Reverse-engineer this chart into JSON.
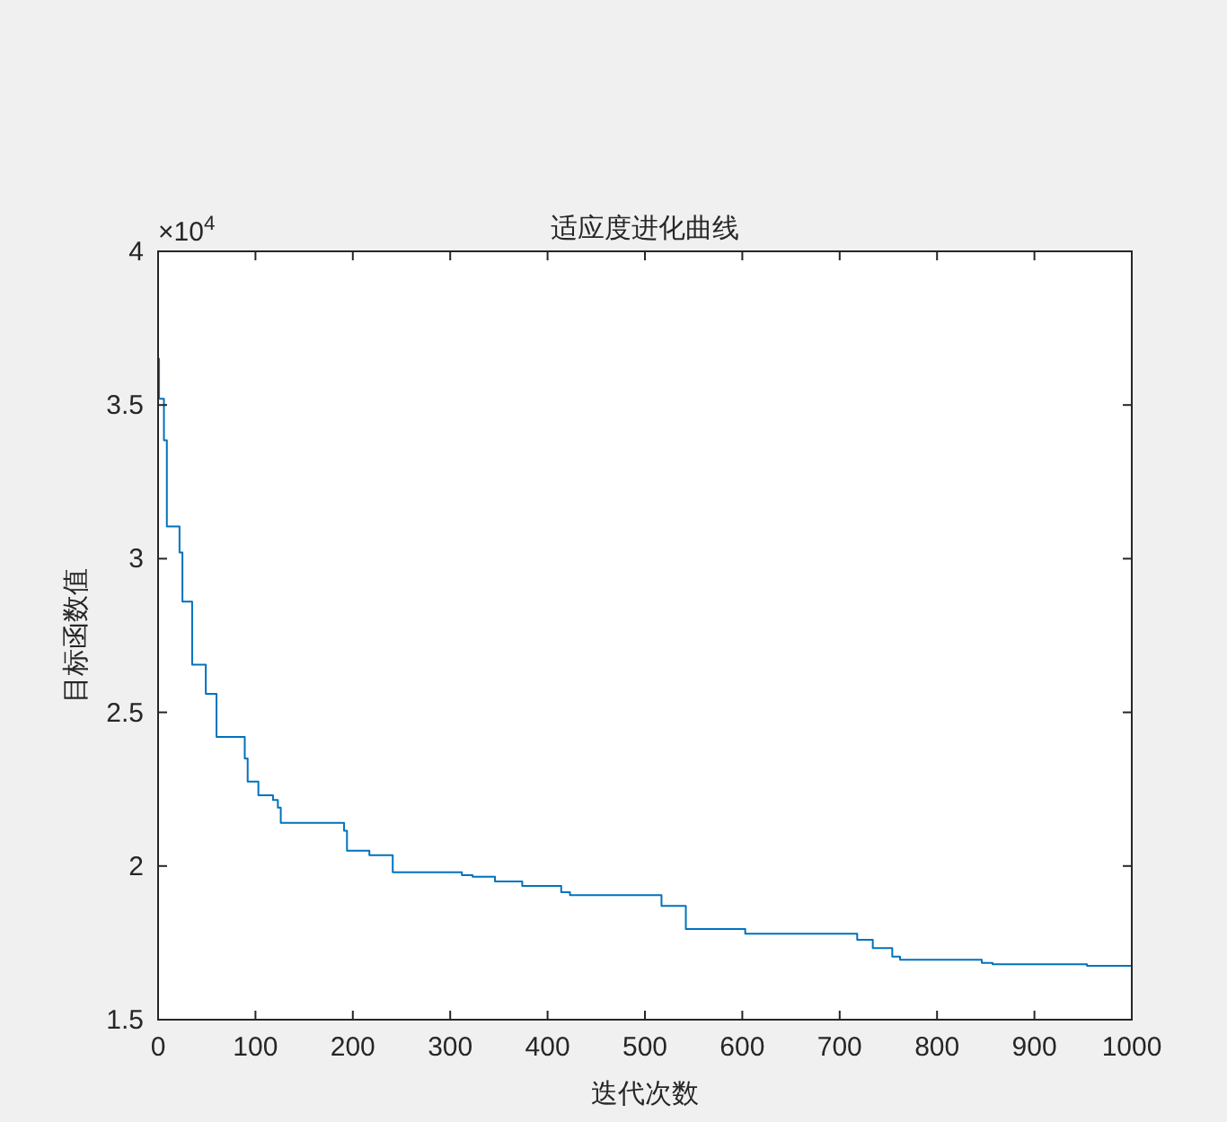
{
  "chart_data": {
    "type": "step",
    "title": "适应度进化曲线",
    "xlabel": "迭代次数",
    "ylabel": "目标函数值",
    "annotations": [
      "×10$^{4}$"
    ],
    "xlim": [
      0,
      1000
    ],
    "xticks": [
      0,
      100,
      200,
      300,
      400,
      500,
      600,
      700,
      800,
      900,
      1000
    ],
    "ylim": [
      1.5,
      4
    ],
    "yticks": [
      1.5,
      2,
      2.5,
      3,
      3.5,
      4
    ],
    "series": [
      {
        "color": "#0072bd",
        "x": [
          0,
          1,
          6,
          9,
          22,
          25,
          35,
          49,
          60,
          89,
          92,
          103,
          118,
          123,
          126,
          191,
          194,
          217,
          241,
          312,
          323,
          346,
          374,
          414,
          423,
          517,
          542,
          603,
          718,
          734,
          754,
          762,
          846,
          857,
          954,
          1000
        ],
        "values": [
          3.65,
          3.52,
          3.385,
          3.105,
          3.02,
          2.86,
          2.655,
          2.56,
          2.42,
          2.35,
          2.275,
          2.23,
          2.215,
          2.19,
          2.14,
          2.115,
          2.05,
          2.035,
          1.98,
          1.97,
          1.965,
          1.95,
          1.935,
          1.915,
          1.905,
          1.87,
          1.795,
          1.78,
          1.76,
          1.733,
          1.705,
          1.695,
          1.685,
          1.68,
          1.675,
          1.675
        ]
      }
    ]
  }
}
